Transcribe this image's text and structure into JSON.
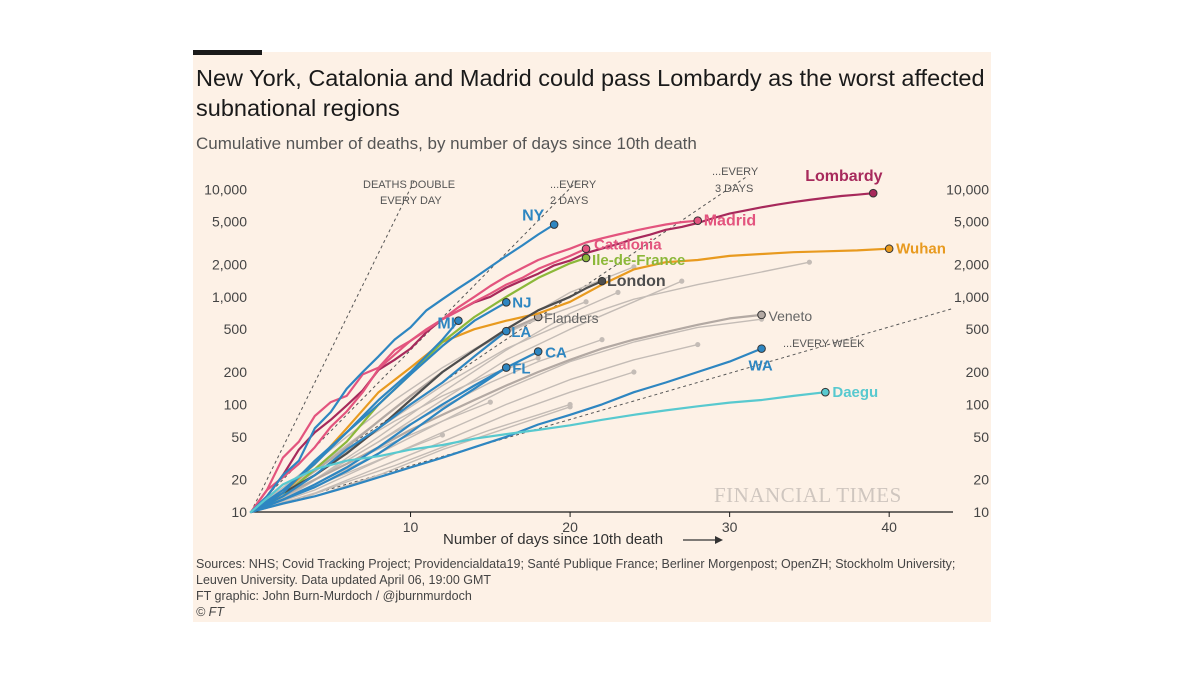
{
  "header": {
    "title": "New York, Catalonia and Madrid could pass Lombardy as the worst affected subnational regions",
    "subtitle": "Cumulative number of deaths, by number of days since 10th death"
  },
  "footer": {
    "sources_line1": "Sources: NHS; Covid Tracking Project; Providencialdata19; Santé Publique France; Berliner Morgenpost; OpenZH; Stockholm University;",
    "sources_line2": "Leuven University. Data updated April 06, 19:00 GMT",
    "credit": "FT graphic: John Burn-Murdoch / @jburnmurdoch",
    "copyright": "© FT"
  },
  "chart_data": {
    "type": "line",
    "title": "New York, Catalonia and Madrid could pass Lombardy as the worst affected subnational regions",
    "subtitle": "Cumulative number of deaths, by number of days since 10th death",
    "xlabel": "Number of days since 10th death",
    "ylabel": "",
    "x_scale": "linear",
    "y_scale": "log",
    "xlim": [
      0,
      44
    ],
    "ylim": [
      10,
      13000
    ],
    "x_ticks": [
      10,
      20,
      30,
      40
    ],
    "x_tick_labels": [
      "10",
      "20",
      "30",
      "40"
    ],
    "y_ticks": [
      10,
      20,
      50,
      100,
      200,
      500,
      1000,
      2000,
      5000,
      10000
    ],
    "y_tick_labels": [
      "10",
      "20",
      "50",
      "100",
      "200",
      "500",
      "1,000",
      "2,000",
      "5,000",
      "10,000"
    ],
    "grid": false,
    "legend": "direct labels",
    "watermark": "FINANCIAL TIMES",
    "colors": {
      "background": "#fdf1e6",
      "lombardy": "#a7295b",
      "madrid": "#e3547e",
      "catalonia": "#e3547e",
      "wuhan": "#e89a1f",
      "ile_de_france": "#8cb83a",
      "london": "#4d4d4d",
      "us_states": "#2e86c1",
      "daegu": "#58c9cf",
      "other_regions": "#c4bcb6"
    },
    "reference_lines": [
      {
        "label": "DEATHS DOUBLE EVERY DAY",
        "doubling_days": 1
      },
      {
        "label": "...EVERY 2 DAYS",
        "doubling_days": 2
      },
      {
        "label": "...EVERY 3 DAYS",
        "doubling_days": 3
      },
      {
        "label": "...EVERY WEEK",
        "doubling_days": 7
      }
    ],
    "series": [
      {
        "name": "Lombardy",
        "color": "#a7295b",
        "label_weight": "bold",
        "x": [
          0,
          1,
          2,
          3,
          4,
          5,
          6,
          7,
          8,
          9,
          10,
          11,
          12,
          13,
          14,
          15,
          16,
          17,
          18,
          19,
          20,
          21,
          22,
          23,
          24,
          25,
          26,
          27,
          28,
          29,
          30,
          31,
          32,
          33,
          34,
          35,
          36,
          37,
          38,
          39
        ],
        "y": [
          10,
          14,
          22,
          38,
          55,
          72,
          98,
          135,
          210,
          260,
          330,
          470,
          620,
          740,
          890,
          1000,
          1220,
          1420,
          1640,
          1960,
          2170,
          2550,
          2810,
          3100,
          3460,
          3780,
          4200,
          4470,
          4860,
          5400,
          5940,
          6360,
          6800,
          7200,
          7590,
          7960,
          8310,
          8650,
          8900,
          9200
        ]
      },
      {
        "name": "Madrid",
        "color": "#e3547e",
        "label_weight": "bold",
        "x": [
          0,
          1,
          2,
          3,
          4,
          5,
          6,
          7,
          8,
          9,
          10,
          11,
          12,
          13,
          14,
          15,
          16,
          17,
          18,
          19,
          20,
          21,
          22,
          23,
          24,
          25,
          26,
          27,
          28
        ],
        "y": [
          10,
          16,
          21,
          28,
          40,
          62,
          86,
          130,
          215,
          290,
          390,
          500,
          620,
          800,
          1000,
          1260,
          1550,
          1850,
          2200,
          2500,
          2800,
          3200,
          3500,
          3800,
          4100,
          4400,
          4700,
          4950,
          5100
        ]
      },
      {
        "name": "Catalonia",
        "color": "#e3547e",
        "label_weight": "bold",
        "x": [
          0,
          1,
          2,
          3,
          4,
          5,
          6,
          7,
          8,
          9,
          10,
          11,
          12,
          13,
          14,
          15,
          16,
          17,
          18,
          19,
          20,
          21
        ],
        "y": [
          10,
          16,
          32,
          45,
          78,
          105,
          120,
          190,
          220,
          320,
          390,
          490,
          620,
          740,
          900,
          1070,
          1300,
          1500,
          1820,
          2090,
          2400,
          2800
        ]
      },
      {
        "name": "Wuhan",
        "color": "#e89a1f",
        "label_weight": "bold",
        "x": [
          0,
          2,
          4,
          6,
          8,
          10,
          12,
          14,
          16,
          18,
          20,
          22,
          24,
          26,
          28,
          30,
          32,
          34,
          36,
          38,
          40
        ],
        "y": [
          10,
          15,
          28,
          60,
          130,
          220,
          380,
          500,
          600,
          700,
          900,
          1300,
          1800,
          2100,
          2200,
          2400,
          2500,
          2600,
          2650,
          2700,
          2800
        ]
      },
      {
        "name": "Ile-de-France",
        "color": "#8cb83a",
        "label_weight": "bold",
        "x": [
          0,
          2,
          4,
          6,
          8,
          10,
          12,
          14,
          16,
          18,
          20,
          21
        ],
        "y": [
          10,
          14,
          25,
          45,
          100,
          190,
          380,
          650,
          1000,
          1500,
          2050,
          2300
        ]
      },
      {
        "name": "London",
        "color": "#4d4d4d",
        "label_weight": "bold",
        "x": [
          0,
          2,
          4,
          6,
          8,
          10,
          12,
          14,
          16,
          18,
          20,
          21,
          22
        ],
        "y": [
          10,
          15,
          22,
          35,
          60,
          110,
          200,
          320,
          500,
          750,
          1000,
          1200,
          1400
        ]
      },
      {
        "name": "NY",
        "color": "#2e86c1",
        "label_weight": "bold",
        "x": [
          0,
          1,
          2,
          3,
          4,
          5,
          6,
          7,
          8,
          9,
          10,
          11,
          12,
          13,
          14,
          15,
          16,
          17,
          18,
          19
        ],
        "y": [
          10,
          14,
          22,
          30,
          60,
          85,
          140,
          200,
          280,
          400,
          520,
          750,
          950,
          1200,
          1500,
          1900,
          2400,
          3000,
          3800,
          4700
        ]
      },
      {
        "name": "NJ",
        "color": "#2e86c1",
        "label_weight": "bold",
        "x": [
          0,
          2,
          4,
          6,
          8,
          10,
          12,
          14,
          16
        ],
        "y": [
          10,
          15,
          30,
          55,
          100,
          190,
          350,
          600,
          890
        ]
      },
      {
        "name": "MI",
        "color": "#2e86c1",
        "label_weight": "bold",
        "x": [
          0,
          2,
          4,
          6,
          8,
          10,
          12,
          13
        ],
        "y": [
          10,
          16,
          28,
          55,
          110,
          200,
          400,
          600
        ]
      },
      {
        "name": "LA",
        "color": "#2e86c1",
        "label_weight": "bold",
        "x": [
          0,
          2,
          4,
          6,
          8,
          10,
          12,
          14,
          16
        ],
        "y": [
          10,
          14,
          22,
          38,
          60,
          100,
          160,
          280,
          480
        ]
      },
      {
        "name": "CA",
        "color": "#2e86c1",
        "label_weight": "bold",
        "x": [
          0,
          2,
          4,
          6,
          8,
          10,
          12,
          14,
          16,
          18
        ],
        "y": [
          10,
          13,
          18,
          26,
          40,
          65,
          100,
          150,
          220,
          310
        ]
      },
      {
        "name": "FL",
        "color": "#2e86c1",
        "label_weight": "bold",
        "x": [
          0,
          2,
          4,
          6,
          8,
          10,
          12,
          14,
          16
        ],
        "y": [
          10,
          13,
          17,
          24,
          35,
          55,
          90,
          140,
          220
        ]
      },
      {
        "name": "WA",
        "color": "#2e86c1",
        "label_weight": "bold",
        "x": [
          0,
          2,
          4,
          6,
          8,
          10,
          12,
          14,
          16,
          18,
          20,
          22,
          24,
          26,
          28,
          30,
          32
        ],
        "y": [
          10,
          12,
          14,
          17,
          21,
          26,
          32,
          40,
          50,
          65,
          80,
          100,
          130,
          160,
          200,
          250,
          330
        ]
      },
      {
        "name": "Daegu",
        "color": "#58c9cf",
        "label_weight": "bold",
        "x": [
          0,
          2,
          4,
          6,
          8,
          10,
          12,
          14,
          16,
          18,
          20,
          22,
          24,
          26,
          28,
          30,
          32,
          34,
          36
        ],
        "y": [
          10,
          18,
          25,
          30,
          33,
          38,
          42,
          48,
          53,
          58,
          64,
          72,
          80,
          88,
          96,
          104,
          110,
          120,
          130
        ]
      },
      {
        "name": "Veneto",
        "color": "#b3a9a3",
        "label_weight": "normal",
        "x": [
          0,
          2,
          4,
          6,
          8,
          10,
          12,
          14,
          16,
          18,
          20,
          22,
          24,
          26,
          28,
          30,
          32
        ],
        "y": [
          10,
          14,
          20,
          28,
          40,
          58,
          80,
          110,
          150,
          200,
          260,
          330,
          400,
          470,
          550,
          630,
          680
        ]
      },
      {
        "name": "Flanders",
        "color": "#b3a9a3",
        "label_weight": "normal",
        "x": [
          0,
          2,
          4,
          6,
          8,
          10,
          12,
          14,
          16,
          18
        ],
        "y": [
          10,
          15,
          24,
          40,
          70,
          120,
          200,
          320,
          480,
          650
        ]
      },
      {
        "name": "",
        "color": "#c4bcb6",
        "x": [
          0,
          4,
          8,
          12,
          16,
          20,
          24,
          27
        ],
        "y": [
          10,
          20,
          45,
          110,
          260,
          500,
          900,
          1400
        ]
      },
      {
        "name": "",
        "color": "#c4bcb6",
        "x": [
          0,
          4,
          8,
          12,
          16,
          20,
          24,
          28,
          32,
          35
        ],
        "y": [
          10,
          22,
          60,
          150,
          330,
          600,
          950,
          1300,
          1700,
          2100
        ]
      },
      {
        "name": "",
        "color": "#c4bcb6",
        "x": [
          0,
          4,
          8,
          12,
          16,
          20,
          24,
          28,
          32
        ],
        "y": [
          10,
          18,
          35,
          70,
          140,
          250,
          380,
          520,
          620
        ]
      },
      {
        "name": "",
        "color": "#c4bcb6",
        "x": [
          0,
          4,
          8,
          12,
          16,
          20,
          24,
          28
        ],
        "y": [
          10,
          16,
          30,
          55,
          100,
          170,
          260,
          360
        ]
      },
      {
        "name": "",
        "color": "#c4bcb6",
        "x": [
          0,
          4,
          8,
          12,
          16,
          20,
          24
        ],
        "y": [
          10,
          15,
          26,
          45,
          80,
          130,
          200
        ]
      },
      {
        "name": "",
        "color": "#c4bcb6",
        "x": [
          0,
          4,
          8,
          12,
          16,
          20
        ],
        "y": [
          10,
          14,
          22,
          38,
          60,
          95
        ]
      },
      {
        "name": "",
        "color": "#c4bcb6",
        "x": [
          0,
          4,
          8,
          12,
          16,
          20,
          23
        ],
        "y": [
          10,
          20,
          50,
          130,
          320,
          700,
          1100
        ]
      },
      {
        "name": "",
        "color": "#c4bcb6",
        "x": [
          0,
          4,
          8,
          12,
          16,
          20,
          24
        ],
        "y": [
          10,
          25,
          70,
          200,
          500,
          1100,
          1900
        ]
      },
      {
        "name": "",
        "color": "#c4bcb6",
        "x": [
          0,
          3,
          6,
          9,
          12,
          15,
          18
        ],
        "y": [
          10,
          20,
          38,
          70,
          120,
          190,
          270
        ]
      },
      {
        "name": "",
        "color": "#c4bcb6",
        "x": [
          0,
          3,
          6,
          9,
          12,
          15
        ],
        "y": [
          10,
          17,
          28,
          45,
          70,
          105
        ]
      },
      {
        "name": "",
        "color": "#c4bcb6",
        "x": [
          0,
          3,
          6,
          9,
          12
        ],
        "y": [
          10,
          15,
          23,
          35,
          52
        ]
      },
      {
        "name": "",
        "color": "#c4bcb6",
        "x": [
          0,
          3,
          6,
          9,
          12,
          15,
          18,
          21
        ],
        "y": [
          10,
          22,
          50,
          110,
          220,
          400,
          620,
          900
        ]
      },
      {
        "name": "",
        "color": "#c4bcb6",
        "x": [
          0,
          3,
          6,
          9,
          12,
          15,
          18,
          22
        ],
        "y": [
          10,
          16,
          30,
          55,
          95,
          160,
          250,
          400
        ]
      },
      {
        "name": "",
        "color": "#c4bcb6",
        "x": [
          0,
          3,
          6,
          9,
          12,
          15,
          18,
          20
        ],
        "y": [
          10,
          13,
          19,
          27,
          40,
          58,
          80,
          100
        ]
      }
    ]
  }
}
